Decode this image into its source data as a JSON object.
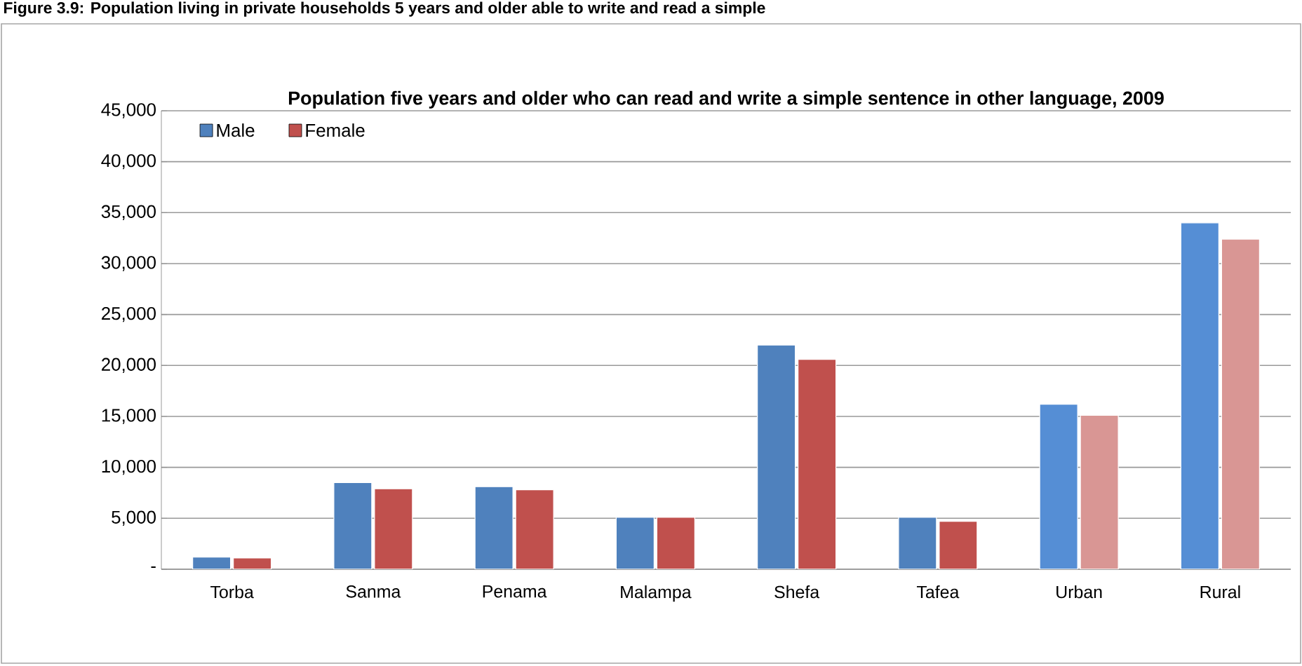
{
  "chart_data": {
    "type": "bar",
    "title": "Population five years and older who can read and write a simple sentence in other language, 2009",
    "annotations": [
      "Figure 3.9: Population living in private households 5 years and older able to write and read a simple"
    ],
    "categories": [
      "Torba",
      "Sanma",
      "Penama",
      "Malampa",
      "Shefa",
      "Tafea",
      "Urban",
      "Rural"
    ],
    "series": [
      {
        "name": "Male",
        "color": "#4f81bd",
        "colors": [
          "#4f81bd",
          "#4f81bd",
          "#4f81bd",
          "#4f81bd",
          "#4f81bd",
          "#4f81bd",
          "#558ed5",
          "#558ed5"
        ],
        "values": [
          1200,
          8500,
          8100,
          5100,
          22000,
          5100,
          16200,
          34000
        ]
      },
      {
        "name": "Female",
        "color": "#c0504d",
        "colors": [
          "#c0504d",
          "#c0504d",
          "#c0504d",
          "#c0504d",
          "#c0504d",
          "#c0504d",
          "#d99694",
          "#d99694"
        ],
        "values": [
          1100,
          7900,
          7800,
          5100,
          20600,
          4700,
          15100,
          32400
        ]
      }
    ],
    "ylim": [
      0,
      45000
    ],
    "yticks": [
      {
        "value": 0,
        "label": "-"
      },
      {
        "value": 5000,
        "label": "5,000"
      },
      {
        "value": 10000,
        "label": "10,000"
      },
      {
        "value": 15000,
        "label": "15,000"
      },
      {
        "value": 20000,
        "label": "20,000"
      },
      {
        "value": 25000,
        "label": "25,000"
      },
      {
        "value": 30000,
        "label": "30,000"
      },
      {
        "value": 35000,
        "label": "35,000"
      },
      {
        "value": 40000,
        "label": "40,000"
      },
      {
        "value": 45000,
        "label": "45,000"
      }
    ],
    "grid": "y",
    "legend": "top left"
  }
}
